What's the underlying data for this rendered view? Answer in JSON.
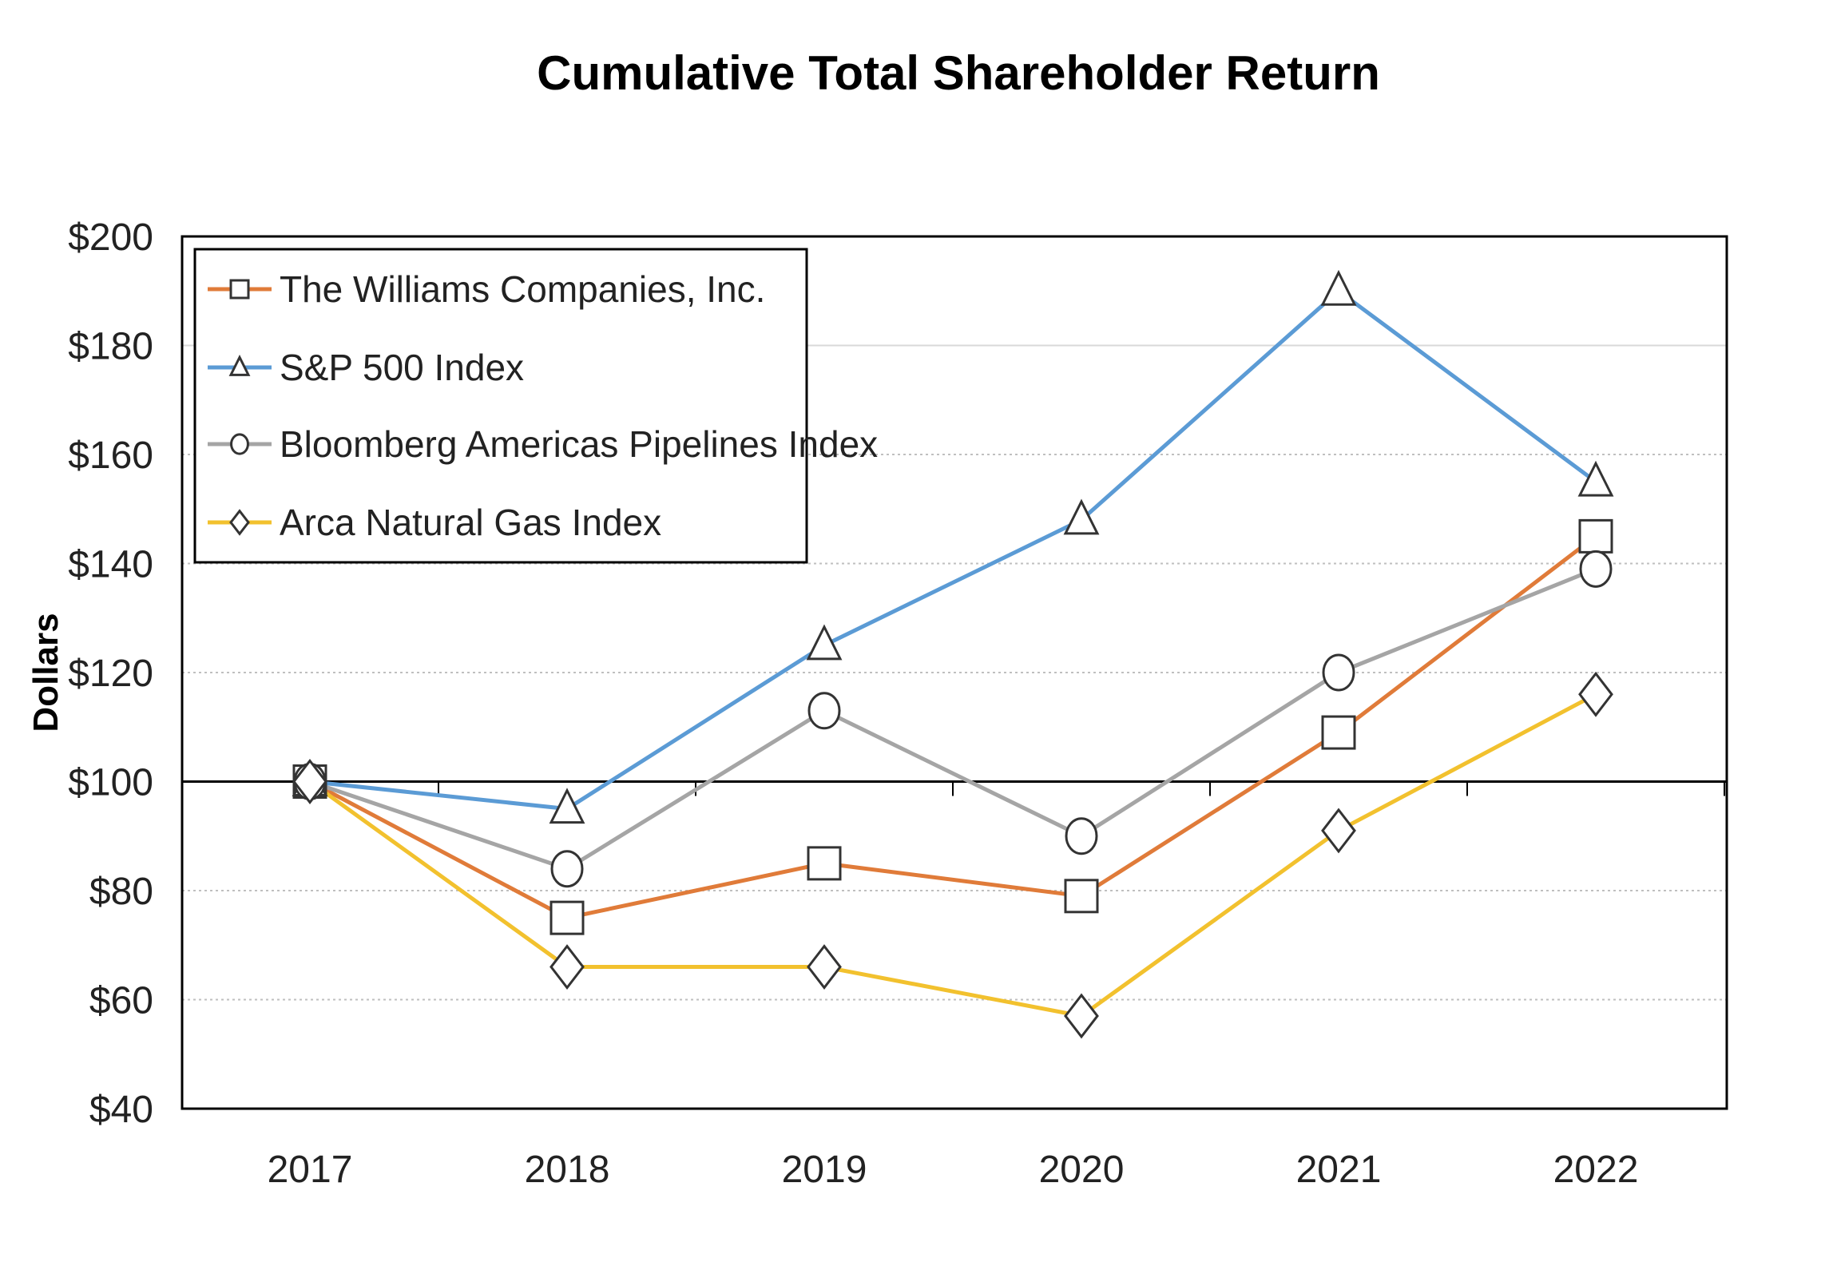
{
  "chart_data": {
    "type": "line",
    "title": "Cumulative  Total Shareholder Return",
    "xlabel": "",
    "ylabel": "Dollars",
    "categories": [
      "2017",
      "2018",
      "2019",
      "2020",
      "2021",
      "2022"
    ],
    "ylim": [
      40,
      200
    ],
    "yticks": [
      40,
      60,
      80,
      100,
      120,
      140,
      160,
      180,
      200
    ],
    "ytick_labels": [
      "$40",
      "$60",
      "$80",
      "$100",
      "$120",
      "$140",
      "$160",
      "$180",
      "$200"
    ],
    "grid": "horizontal dotted",
    "baseline": 100,
    "legend_position": "top-left",
    "series": [
      {
        "name": "The Williams Companies, Inc.",
        "marker": "square",
        "color": "#e07b39",
        "values": [
          100,
          75,
          85,
          79,
          109,
          145
        ]
      },
      {
        "name": "S&P 500 Index",
        "marker": "triangle",
        "color": "#5b9bd5",
        "values": [
          100,
          95,
          125,
          148,
          190,
          155
        ]
      },
      {
        "name": "Bloomberg Americas Pipelines Index",
        "marker": "circle",
        "color": "#a5a5a5",
        "values": [
          100,
          84,
          113,
          90,
          120,
          139
        ]
      },
      {
        "name": "Arca Natural Gas Index",
        "marker": "diamond",
        "color": "#f2c12e",
        "values": [
          100,
          66,
          66,
          57,
          91,
          116
        ]
      }
    ]
  }
}
